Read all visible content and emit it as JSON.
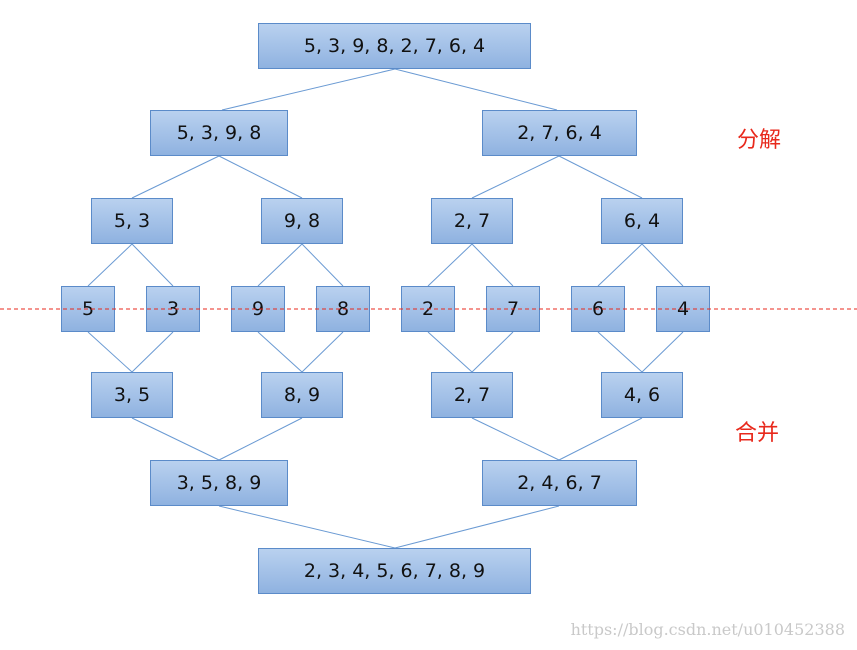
{
  "nodes": {
    "root": "5, 3, 9, 8, 2, 7, 6, 4",
    "l1_left": "5, 3, 9, 8",
    "l1_right": "2, 7, 6, 4",
    "l2_a": "5, 3",
    "l2_b": "9, 8",
    "l2_c": "2, 7",
    "l2_d": "6, 4",
    "leaf_1": "5",
    "leaf_2": "3",
    "leaf_3": "9",
    "leaf_4": "8",
    "leaf_5": "2",
    "leaf_6": "7",
    "leaf_7": "6",
    "leaf_8": "4",
    "m1_a": "3, 5",
    "m1_b": "8, 9",
    "m1_c": "2, 7",
    "m1_d": "4, 6",
    "m2_left": "3, 5, 8, 9",
    "m2_right": "2, 4, 6, 7",
    "result": "2, 3, 4, 5, 6, 7, 8, 9"
  },
  "labels": {
    "split": "分解",
    "merge": "合并"
  },
  "watermark": "https://blog.csdn.net/u010452388",
  "colors": {
    "box_fill": "#a2c0e7",
    "box_border": "#5b8bc9",
    "connector": "#6a9ad3",
    "label": "#e8291c",
    "divider": "#e8291c"
  }
}
